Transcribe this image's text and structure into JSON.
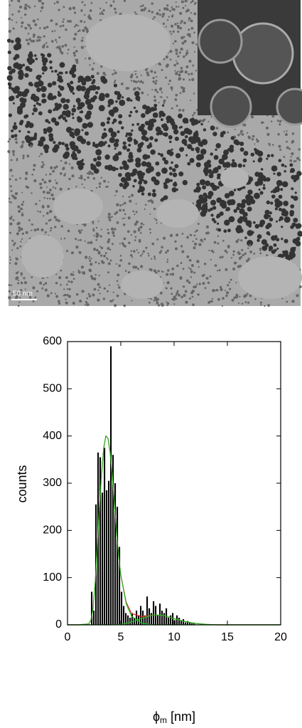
{
  "image": {
    "scale_bar": "50 nm"
  },
  "chart_data": {
    "type": "histogram",
    "x_label_parts": [
      "ϕ",
      "m",
      " [nm]"
    ],
    "y_label": "counts",
    "bins": [
      2.2,
      2.4,
      2.6,
      2.8,
      3.0,
      3.2,
      3.4,
      3.6,
      3.8,
      4.0,
      4.2,
      4.4,
      4.6,
      4.8,
      5.0,
      5.2,
      5.4,
      5.6,
      5.8,
      6.0,
      6.2,
      6.4,
      6.6,
      6.8,
      7.0,
      7.2,
      7.4,
      7.6,
      7.8,
      8.0,
      8.2,
      8.4,
      8.6,
      8.8,
      9.0,
      9.2,
      9.4,
      9.6,
      9.8,
      10.0,
      10.2,
      10.4,
      10.6,
      10.8,
      11.0,
      11.2,
      11.4,
      11.6,
      11.8,
      12.0
    ],
    "values": [
      70,
      30,
      255,
      365,
      355,
      280,
      375,
      285,
      305,
      590,
      360,
      300,
      250,
      165,
      70,
      40,
      25,
      20,
      15,
      25,
      15,
      30,
      20,
      40,
      30,
      20,
      60,
      35,
      25,
      50,
      40,
      20,
      45,
      30,
      25,
      35,
      15,
      20,
      25,
      10,
      20,
      15,
      10,
      12,
      5,
      8,
      5,
      3,
      4
    ],
    "color": "#000000",
    "curves": [
      {
        "color": "#e02020",
        "x": [
          0,
          1,
          2,
          2.2,
          2.4,
          2.6,
          2.8,
          3,
          3.2,
          3.4,
          3.6,
          3.8,
          4,
          4.2,
          4.4,
          4.6,
          4.8,
          5,
          5.5,
          6,
          7,
          8,
          9,
          10,
          11,
          12,
          13,
          14,
          16,
          18,
          20
        ],
        "values": [
          0,
          0,
          2,
          10,
          35,
          90,
          170,
          250,
          320,
          375,
          400,
          395,
          365,
          315,
          255,
          195,
          145,
          106,
          48,
          24,
          17,
          21,
          20,
          13,
          7,
          3,
          1,
          0,
          0,
          0,
          0
        ]
      },
      {
        "color": "#22bb22",
        "x": [
          0,
          1,
          2,
          2.2,
          2.4,
          2.6,
          2.8,
          3,
          3.2,
          3.4,
          3.6,
          3.8,
          4,
          4.2,
          4.4,
          4.6,
          4.8,
          5,
          5.5,
          6,
          7,
          8,
          9,
          10,
          11,
          12,
          13,
          14,
          16,
          18,
          20
        ],
        "values": [
          0,
          0,
          2,
          10,
          35,
          90,
          170,
          250,
          320,
          375,
          400,
          395,
          365,
          315,
          255,
          195,
          145,
          105,
          45,
          18,
          3,
          0,
          0,
          0,
          0,
          0,
          0,
          0,
          0,
          0,
          0
        ]
      },
      {
        "color": "#22bb22",
        "x": [
          0,
          1,
          2,
          3,
          4,
          5,
          5.5,
          6,
          7,
          8,
          9,
          10,
          11,
          12,
          13,
          14,
          16,
          18,
          20
        ],
        "values": [
          0,
          0,
          0,
          0,
          0,
          1,
          3,
          6,
          14,
          21,
          20,
          13,
          7,
          3,
          1,
          0,
          0,
          0,
          0
        ]
      }
    ],
    "xlim": [
      0,
      20
    ],
    "ylim": [
      0,
      600
    ],
    "xticks": [
      0,
      5,
      10,
      15,
      20
    ],
    "yticks": [
      0,
      100,
      200,
      300,
      400,
      500,
      600
    ]
  }
}
